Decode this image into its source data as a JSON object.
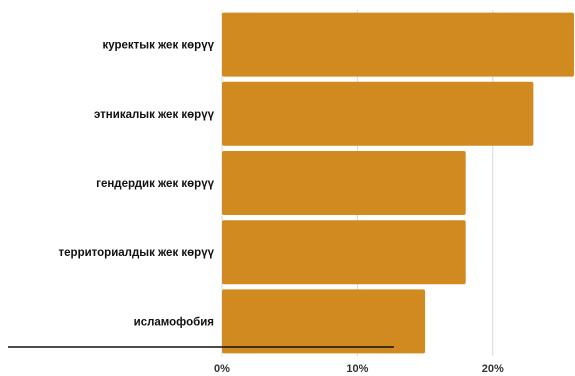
{
  "chart_data": {
    "type": "bar",
    "orientation": "horizontal",
    "categories": [
      "куректык жек көрүү",
      "этникалык жек көрүү",
      "гендердик жек көрүү",
      "территориалдык жек көрүү",
      "исламофобия"
    ],
    "values": [
      26,
      23,
      18,
      18,
      15
    ],
    "xlim": [
      0,
      26
    ],
    "xticks": [
      0,
      10,
      20
    ],
    "xtick_labels": [
      "0%",
      "10%",
      "20%"
    ],
    "unit": "%",
    "grid": true,
    "bar_color": "#d18a1f"
  }
}
